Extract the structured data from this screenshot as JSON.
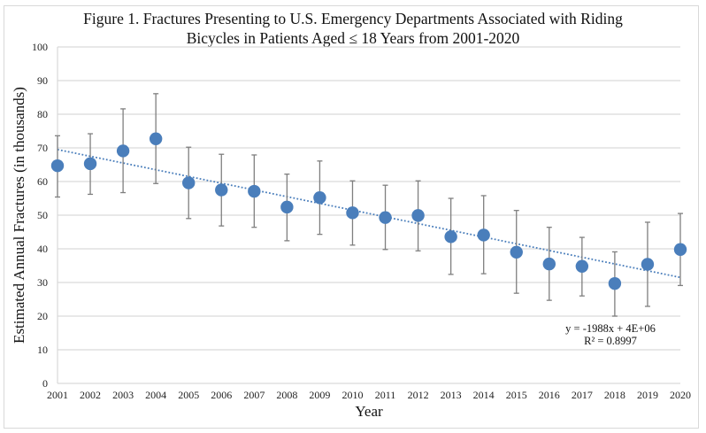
{
  "chart_data": {
    "type": "scatter",
    "title_line1": "Figure 1. Fractures Presenting to U.S. Emergency Departments Associated with Riding",
    "title_line2": "Bicycles in Patients Aged ≤ 18 Years from 2001-2020",
    "xlabel": "Year",
    "ylabel": "Estimated Annual Fractures (in thousands)",
    "ylim": [
      0,
      100
    ],
    "yticks": [
      0,
      10,
      20,
      30,
      40,
      50,
      60,
      70,
      80,
      90,
      100
    ],
    "grid": "horizontal",
    "categories": [
      "2001",
      "2002",
      "2003",
      "2004",
      "2005",
      "2006",
      "2007",
      "2008",
      "2009",
      "2010",
      "2011",
      "2012",
      "2013",
      "2014",
      "2015",
      "2016",
      "2017",
      "2018",
      "2019",
      "2020"
    ],
    "series": [
      {
        "name": "Estimated Annual Fractures",
        "color": "#4a7ebb",
        "values": [
          64.7,
          65.3,
          69.1,
          72.7,
          59.6,
          57.5,
          57.1,
          52.4,
          55.2,
          50.7,
          49.3,
          49.9,
          43.6,
          44.1,
          39.0,
          35.5,
          34.8,
          29.7,
          35.4,
          39.8
        ],
        "error_upper": [
          73.6,
          74.2,
          81.6,
          86.1,
          70.2,
          68.1,
          67.9,
          62.2,
          66.1,
          60.2,
          58.9,
          60.2,
          55.0,
          55.8,
          51.4,
          46.4,
          43.4,
          39.1,
          47.9,
          50.5
        ],
        "error_lower": [
          55.4,
          56.2,
          56.7,
          59.4,
          49.0,
          46.8,
          46.4,
          42.4,
          44.3,
          41.1,
          39.8,
          39.4,
          32.4,
          32.6,
          26.8,
          24.7,
          26.0,
          20.0,
          22.9,
          29.1
        ]
      }
    ],
    "trendline": {
      "type": "linear",
      "style": "dotted",
      "color": "#4a7ebb",
      "start": 69.5,
      "end": 31.5,
      "equation": "y = -1988x + 4E+06",
      "r_squared": "R² = 0.8997"
    },
    "error_bar_color": "#7f7f7f",
    "gridline_color": "#d9d9d9"
  }
}
